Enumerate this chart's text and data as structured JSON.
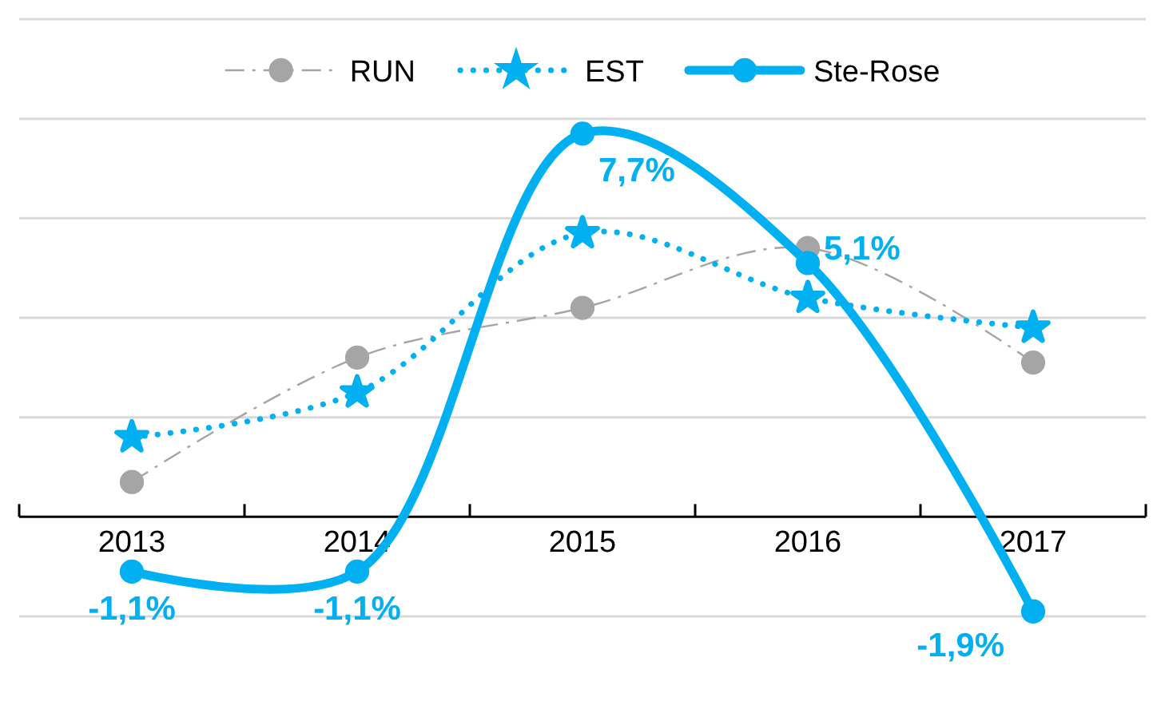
{
  "chart_data": {
    "type": "line",
    "categories": [
      "2013",
      "2014",
      "2015",
      "2016",
      "2017"
    ],
    "series": [
      {
        "name": "RUN",
        "color": "#a5a5a5",
        "values": [
          0.7,
          3.2,
          4.2,
          5.4,
          3.1
        ],
        "marker": "circle",
        "line_style": "dashed"
      },
      {
        "name": "EST",
        "color": "#00b0f0",
        "values": [
          1.6,
          2.5,
          5.7,
          4.4,
          3.8
        ],
        "marker": "star",
        "line_style": "dotted"
      },
      {
        "name": "Ste-Rose",
        "color": "#00b0f0",
        "values": [
          -1.1,
          -1.1,
          7.7,
          5.1,
          -1.9
        ],
        "marker": "circle",
        "line_style": "solid",
        "value_labels": [
          "-1,1%",
          "-1,1%",
          "7,7%",
          "5,1%",
          "-1,9%"
        ]
      }
    ],
    "ylim": [
      -2,
      10
    ],
    "yticks": [
      {
        "value": -2,
        "label": null
      },
      {
        "value": 0,
        "label": null
      },
      {
        "value": 2,
        "label": null
      },
      {
        "value": 4,
        "label": null
      },
      {
        "value": 6,
        "label": null
      },
      {
        "value": 8,
        "label": null
      },
      {
        "value": 10,
        "label": null
      }
    ],
    "grid": "y",
    "tick_labels": "x",
    "legend": "top"
  }
}
